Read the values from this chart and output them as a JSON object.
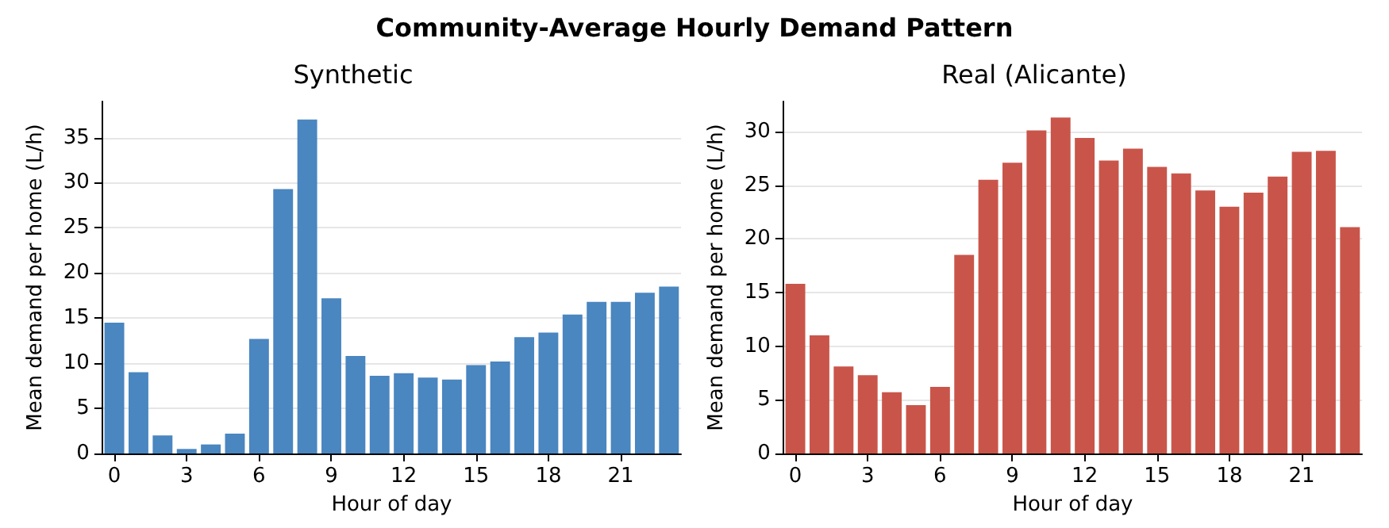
{
  "chart_data": [
    {
      "type": "bar",
      "title": "Synthetic",
      "xlabel": "Hour of day",
      "ylabel": "Mean demand per home (L/h)",
      "annotations": [
        "Community-Average Hourly Demand Pattern"
      ],
      "categories": [
        "0",
        null,
        null,
        "3",
        null,
        null,
        "6",
        null,
        null,
        "9",
        null,
        null,
        "12",
        null,
        null,
        "15",
        null,
        null,
        "18",
        null,
        null,
        "21",
        null,
        null
      ],
      "values": [
        14.5,
        9.0,
        2.0,
        0.5,
        1.0,
        2.2,
        12.7,
        29.3,
        37.0,
        17.2,
        10.8,
        8.6,
        8.9,
        8.4,
        8.2,
        9.8,
        10.2,
        12.9,
        13.4,
        15.4,
        16.8,
        16.8,
        17.8,
        18.5
      ],
      "color": "#4a86c0",
      "ylim": [
        0,
        39
      ],
      "yticks": [
        0,
        5,
        10,
        15,
        20,
        25,
        30,
        35
      ],
      "grid": "y"
    },
    {
      "type": "bar",
      "title": "Real (Alicante)",
      "xlabel": "Hour of day",
      "ylabel": "Mean demand per home (L/h)",
      "categories": [
        "0",
        null,
        null,
        "3",
        null,
        null,
        "6",
        null,
        null,
        "9",
        null,
        null,
        "12",
        null,
        null,
        "15",
        null,
        null,
        "18",
        null,
        null,
        "21",
        null,
        null
      ],
      "values": [
        15.8,
        11.0,
        8.1,
        7.3,
        5.7,
        4.5,
        6.2,
        18.5,
        25.5,
        27.1,
        30.1,
        31.3,
        29.4,
        27.3,
        28.4,
        26.7,
        26.1,
        24.5,
        23.0,
        24.3,
        25.8,
        28.1,
        28.2,
        21.1
      ],
      "color": "#c9554a",
      "ylim": [
        0,
        32.8
      ],
      "yticks": [
        0,
        5,
        10,
        15,
        20,
        25,
        30
      ],
      "grid": "y"
    }
  ]
}
